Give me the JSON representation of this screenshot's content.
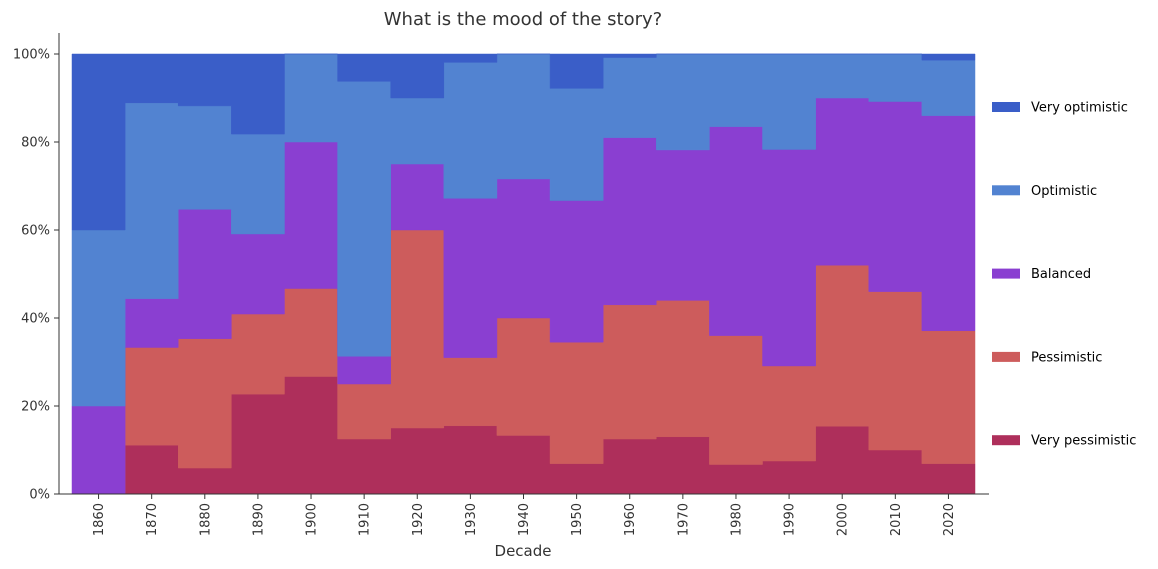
{
  "chart_data": {
    "type": "area",
    "stacked": true,
    "step": true,
    "title": "What is the mood of the story?",
    "xlabel": "Decade",
    "ylabel": "",
    "ylim": [
      0,
      100
    ],
    "y_ticks": [
      "0%",
      "20%",
      "40%",
      "60%",
      "80%",
      "100%"
    ],
    "y_tick_values": [
      0,
      20,
      40,
      60,
      80,
      100
    ],
    "categories": [
      "1860",
      "1870",
      "1880",
      "1890",
      "1900",
      "1910",
      "1920",
      "1930",
      "1940",
      "1950",
      "1960",
      "1970",
      "1980",
      "1990",
      "2000",
      "2010",
      "2020"
    ],
    "legend_position": "right",
    "grid": false,
    "series": [
      {
        "name": "Very pessimistic",
        "color": "#ae2f5b",
        "values": [
          0,
          11.1,
          5.9,
          22.7,
          26.7,
          12.5,
          15,
          15.5,
          13.3,
          6.9,
          12.5,
          13,
          6.7,
          7.5,
          15.4,
          10,
          6.9
        ]
      },
      {
        "name": "Pessimistic",
        "color": "#cd5c5c",
        "values": [
          0,
          22.2,
          29.4,
          18.2,
          20,
          12.5,
          45,
          15.5,
          26.7,
          27.6,
          30.5,
          31,
          29.3,
          21.6,
          36.6,
          36,
          30.2
        ]
      },
      {
        "name": "Balanced",
        "color": "#8a3fd1",
        "values": [
          20,
          11.1,
          29.4,
          18.2,
          33.3,
          6.3,
          15,
          36.2,
          31.6,
          32.2,
          38,
          34.2,
          47.5,
          49.2,
          38,
          43.2,
          48.9
        ]
      },
      {
        "name": "Optimistic",
        "color": "#5283d1",
        "values": [
          40,
          44.5,
          23.5,
          22.7,
          20,
          62.5,
          15,
          30.9,
          28.4,
          25.5,
          18.2,
          21.8,
          16.5,
          21.7,
          10,
          10.8,
          12.6
        ]
      },
      {
        "name": "Very optimistic",
        "color": "#3a5ec8",
        "values": [
          40,
          11.1,
          11.8,
          18.2,
          0,
          6.2,
          10,
          1.9,
          0,
          7.8,
          0.8,
          0,
          0,
          0,
          0,
          0,
          1.4
        ]
      }
    ]
  }
}
